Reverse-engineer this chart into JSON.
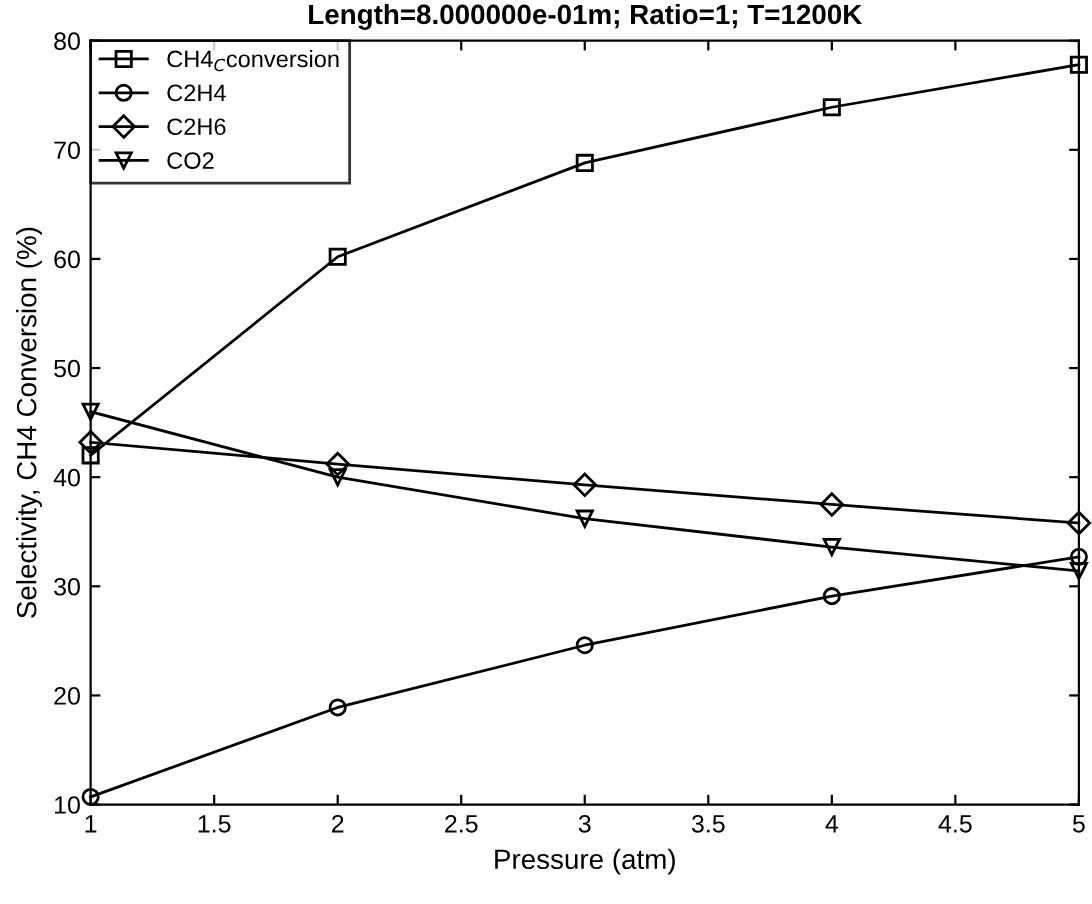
{
  "chart_data": {
    "type": "line",
    "title": "Length=8.000000e-01m; Ratio=1; T=1200K",
    "xlabel": "Pressure (atm)",
    "ylabel": "Selectivity, CH4 Conversion (%)",
    "x": [
      1,
      2,
      3,
      4,
      5
    ],
    "series": [
      {
        "name": "CH4$_{C}$conversion",
        "color": "#000000",
        "marker": "square",
        "values": [
          42,
          60.2,
          68.8,
          73.9,
          77.8
        ]
      },
      {
        "name": "C2H4",
        "color": "#000000",
        "marker": "circle",
        "values": [
          10.7,
          18.9,
          24.6,
          29.1,
          32.7
        ]
      },
      {
        "name": "C2H6",
        "color": "#000000",
        "marker": "diamond",
        "values": [
          43.2,
          41.2,
          39.3,
          37.5,
          35.8
        ]
      },
      {
        "name": "CO2",
        "color": "#000000",
        "marker": "triangle",
        "values": [
          46,
          40,
          36.2,
          33.6,
          31.4
        ]
      }
    ],
    "xlim": [
      1,
      5
    ],
    "xticks": [
      1,
      1.5,
      2,
      2.5,
      3,
      3.5,
      4,
      4.5,
      5
    ],
    "ylim": [
      10,
      80
    ],
    "yticks": [
      10,
      20,
      30,
      40,
      50,
      60,
      70,
      80
    ],
    "grid": false,
    "legend": "top left",
    "line_style": "solid"
  }
}
